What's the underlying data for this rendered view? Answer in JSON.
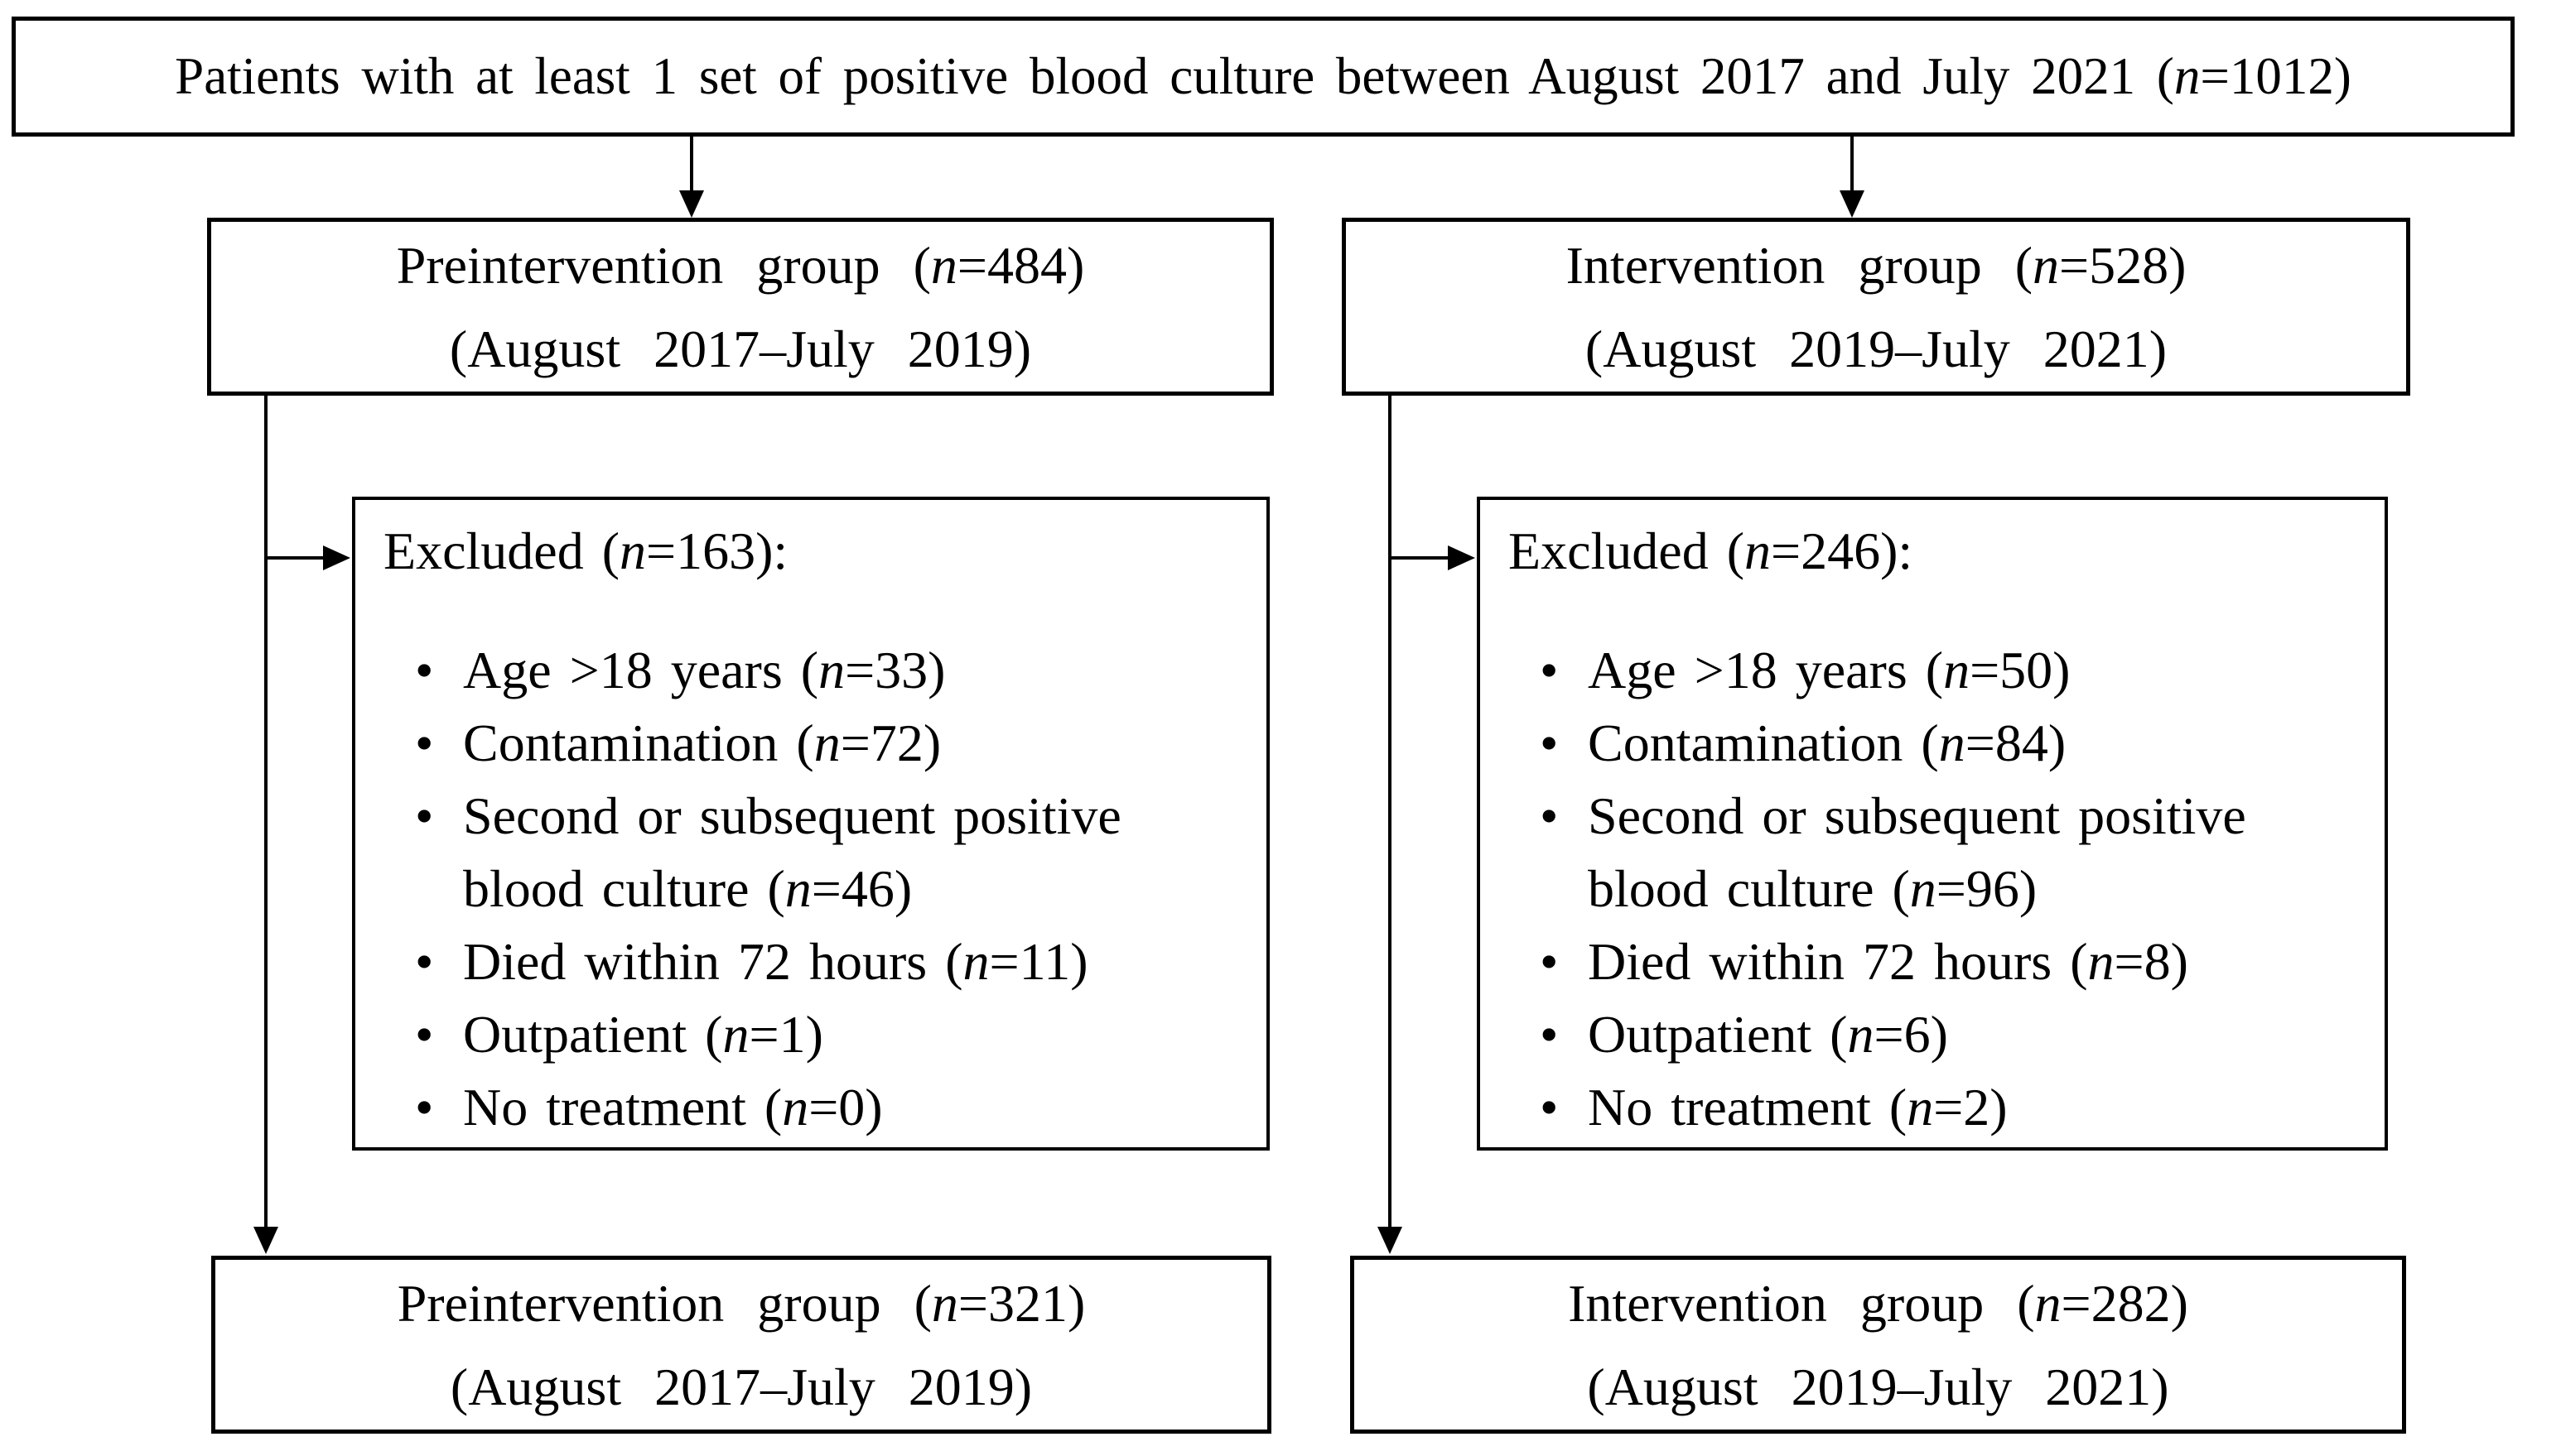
{
  "figure": {
    "bullet_glyph": "•",
    "colors": {
      "background": "#ffffff",
      "border": "#000000",
      "text": "#000000"
    },
    "top_box": {
      "text": "Patients with at least 1 set of positive blood culture between August 2017 and July 2021 (n=1012)"
    },
    "pre_group_box": {
      "line1": "Preintervention group (n=484)",
      "line2": "(August 2017–July 2019)"
    },
    "int_group_box": {
      "line1": "Intervention group (n=528)",
      "line2": "(August 2019–July 2021)"
    },
    "pre_excluded_box": {
      "heading": "Excluded (n=163):",
      "items": [
        "Age >18 years (n=33)",
        "Contamination (n=72)",
        "Second or subsequent positive blood culture (n=46)",
        "Died within 72 hours (n=11)",
        "Outpatient (n=1)",
        "No treatment (n=0)"
      ]
    },
    "int_excluded_box": {
      "heading": "Excluded (n=246):",
      "items": [
        "Age >18 years (n=50)",
        "Contamination (n=84)",
        "Second or subsequent positive blood culture (n=96)",
        "Died within 72 hours (n=8)",
        "Outpatient (n=6)",
        "No treatment (n=2)"
      ]
    },
    "pre_final_box": {
      "line1": "Preintervention group (n=321)",
      "line2": "(August 2017–July 2019)"
    },
    "int_final_box": {
      "line1": "Intervention group (n=282)",
      "line2": "(August 2019–July 2021)"
    }
  }
}
